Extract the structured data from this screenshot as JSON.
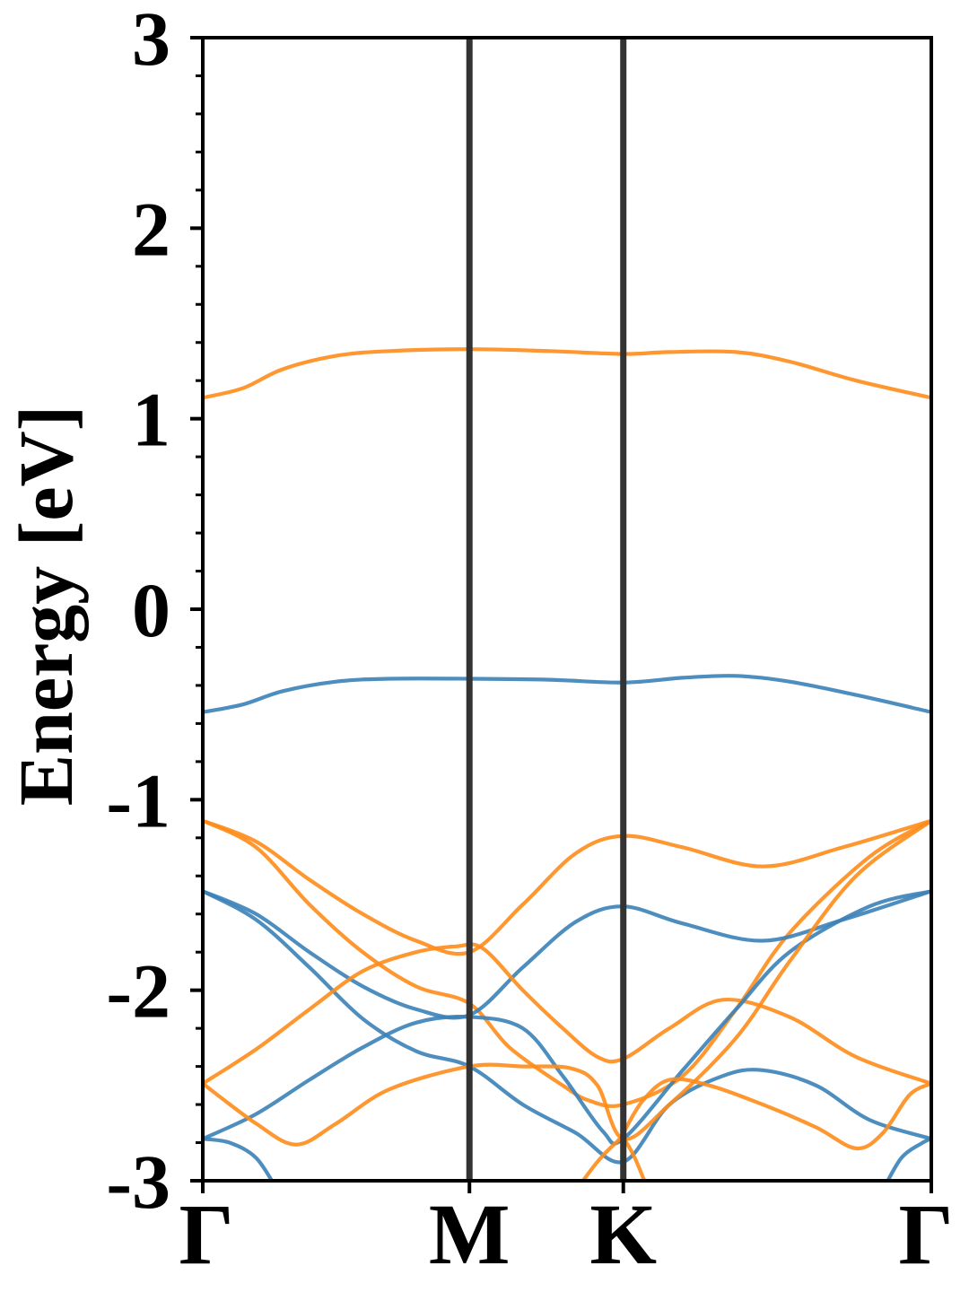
{
  "chart_data": {
    "type": "line",
    "title": "",
    "xlabel": "",
    "ylabel": "Energy [eV]",
    "ylim": [
      -3,
      3
    ],
    "xlim": [
      0,
      2.732
    ],
    "grid": false,
    "legend": "none",
    "y_ticks": [
      {
        "value": 3,
        "label": "3"
      },
      {
        "value": 2,
        "label": "2"
      },
      {
        "value": 1,
        "label": "1"
      },
      {
        "value": 0,
        "label": "0"
      },
      {
        "value": -1,
        "label": "-1"
      },
      {
        "value": -2,
        "label": "-2"
      },
      {
        "value": -3,
        "label": "-3"
      }
    ],
    "y_minor_step": 0.2,
    "x_ticks": [
      {
        "value": 0,
        "label": "Γ"
      },
      {
        "value": 1.0,
        "label": "M"
      },
      {
        "value": 1.577,
        "label": "K"
      },
      {
        "value": 2.732,
        "label": "Γ"
      }
    ],
    "vlines": [
      1.0,
      1.577
    ],
    "colors": {
      "blue": "#3b82b8",
      "orange": "#ff8c1a",
      "vline": "#333333"
    },
    "series": [
      {
        "color": "orange",
        "points": [
          [
            0,
            1.11
          ],
          [
            0.15,
            1.16
          ],
          [
            0.3,
            1.26
          ],
          [
            0.5,
            1.33
          ],
          [
            0.7,
            1.355
          ],
          [
            1.0,
            1.365
          ],
          [
            1.3,
            1.355
          ],
          [
            1.577,
            1.34
          ],
          [
            1.75,
            1.35
          ],
          [
            2.0,
            1.35
          ],
          [
            2.2,
            1.3
          ],
          [
            2.45,
            1.2
          ],
          [
            2.732,
            1.11
          ]
        ]
      },
      {
        "color": "blue",
        "points": [
          [
            0,
            -0.54
          ],
          [
            0.15,
            -0.5
          ],
          [
            0.3,
            -0.43
          ],
          [
            0.5,
            -0.38
          ],
          [
            0.7,
            -0.365
          ],
          [
            1.0,
            -0.365
          ],
          [
            1.3,
            -0.37
          ],
          [
            1.577,
            -0.385
          ],
          [
            1.8,
            -0.36
          ],
          [
            2.0,
            -0.35
          ],
          [
            2.2,
            -0.38
          ],
          [
            2.45,
            -0.45
          ],
          [
            2.732,
            -0.54
          ]
        ]
      },
      {
        "color": "orange",
        "points": [
          [
            0,
            -1.11
          ],
          [
            0.2,
            -1.22
          ],
          [
            0.4,
            -1.42
          ],
          [
            0.6,
            -1.6
          ],
          [
            0.8,
            -1.74
          ],
          [
            1.0,
            -1.8
          ],
          [
            1.2,
            -1.55
          ],
          [
            1.4,
            -1.28
          ],
          [
            1.577,
            -1.19
          ],
          [
            1.8,
            -1.25
          ],
          [
            2.1,
            -1.35
          ],
          [
            2.4,
            -1.25
          ],
          [
            2.732,
            -1.11
          ]
        ]
      },
      {
        "color": "orange",
        "points": [
          [
            0,
            -1.11
          ],
          [
            0.2,
            -1.25
          ],
          [
            0.4,
            -1.55
          ],
          [
            0.6,
            -1.8
          ],
          [
            0.8,
            -1.98
          ],
          [
            1.0,
            -2.07
          ],
          [
            1.15,
            -2.3
          ],
          [
            1.35,
            -2.5
          ],
          [
            1.45,
            -2.58
          ],
          [
            1.577,
            -2.6
          ],
          [
            1.8,
            -2.45
          ],
          [
            2.0,
            -2.1
          ],
          [
            2.2,
            -1.7
          ],
          [
            2.5,
            -1.3
          ],
          [
            2.732,
            -1.11
          ]
        ]
      },
      {
        "color": "blue",
        "points": [
          [
            0,
            -1.48
          ],
          [
            0.2,
            -1.6
          ],
          [
            0.4,
            -1.8
          ],
          [
            0.6,
            -1.98
          ],
          [
            0.8,
            -2.1
          ],
          [
            1.0,
            -2.13
          ],
          [
            1.2,
            -1.88
          ],
          [
            1.4,
            -1.64
          ],
          [
            1.577,
            -1.56
          ],
          [
            1.8,
            -1.65
          ],
          [
            2.1,
            -1.74
          ],
          [
            2.4,
            -1.63
          ],
          [
            2.732,
            -1.48
          ]
        ]
      },
      {
        "color": "blue",
        "points": [
          [
            0,
            -1.48
          ],
          [
            0.2,
            -1.63
          ],
          [
            0.4,
            -1.88
          ],
          [
            0.6,
            -2.15
          ],
          [
            0.8,
            -2.32
          ],
          [
            1.0,
            -2.4
          ],
          [
            1.2,
            -2.6
          ],
          [
            1.4,
            -2.75
          ],
          [
            1.577,
            -2.9
          ],
          [
            1.75,
            -2.6
          ],
          [
            1.95,
            -2.45
          ],
          [
            2.1,
            -2.42
          ],
          [
            2.3,
            -2.5
          ],
          [
            2.5,
            -2.68
          ],
          [
            2.732,
            -2.78
          ]
        ]
      },
      {
        "color": "orange",
        "points": [
          [
            0,
            -2.49
          ],
          [
            0.2,
            -2.31
          ],
          [
            0.4,
            -2.1
          ],
          [
            0.6,
            -1.9
          ],
          [
            0.8,
            -1.8
          ],
          [
            0.95,
            -1.77
          ],
          [
            1.05,
            -1.78
          ],
          [
            1.2,
            -2.0
          ],
          [
            1.35,
            -2.2
          ],
          [
            1.48,
            -2.35
          ],
          [
            1.577,
            -2.36
          ],
          [
            1.75,
            -2.2
          ],
          [
            1.95,
            -2.05
          ],
          [
            2.2,
            -2.14
          ],
          [
            2.45,
            -2.35
          ],
          [
            2.732,
            -2.49
          ]
        ]
      },
      {
        "color": "blue",
        "points": [
          [
            0,
            -2.78
          ],
          [
            0.2,
            -2.65
          ],
          [
            0.4,
            -2.47
          ],
          [
            0.6,
            -2.3
          ],
          [
            0.8,
            -2.17
          ],
          [
            1.0,
            -2.14
          ],
          [
            1.2,
            -2.2
          ],
          [
            1.35,
            -2.45
          ],
          [
            1.5,
            -2.74
          ],
          [
            1.577,
            -2.78
          ],
          [
            1.8,
            -2.42
          ],
          [
            2.0,
            -2.1
          ],
          [
            2.2,
            -1.8
          ],
          [
            2.5,
            -1.56
          ],
          [
            2.732,
            -1.48
          ]
        ]
      },
      {
        "color": "orange",
        "points": [
          [
            0,
            -2.49
          ],
          [
            0.2,
            -2.7
          ],
          [
            0.35,
            -2.81
          ],
          [
            0.5,
            -2.7
          ],
          [
            0.7,
            -2.52
          ],
          [
            1.0,
            -2.4
          ],
          [
            1.2,
            -2.4
          ],
          [
            1.38,
            -2.41
          ],
          [
            1.48,
            -2.5
          ],
          [
            1.577,
            -2.78
          ],
          [
            1.75,
            -2.6
          ],
          [
            2.0,
            -2.25
          ],
          [
            2.2,
            -1.85
          ],
          [
            2.45,
            -1.4
          ],
          [
            2.732,
            -1.11
          ]
        ]
      },
      {
        "color": "orange",
        "points": [
          [
            1.577,
            -2.75
          ],
          [
            1.65,
            -2.58
          ],
          [
            1.75,
            -2.47
          ],
          [
            1.9,
            -2.5
          ],
          [
            2.1,
            -2.6
          ],
          [
            2.3,
            -2.72
          ],
          [
            2.45,
            -2.83
          ],
          [
            2.55,
            -2.75
          ],
          [
            2.65,
            -2.55
          ],
          [
            2.732,
            -2.49
          ]
        ]
      },
      {
        "color": "blue",
        "points": [
          [
            0,
            -2.78
          ],
          [
            0.1,
            -2.8
          ],
          [
            0.2,
            -2.88
          ],
          [
            0.28,
            -3.05
          ]
        ]
      },
      {
        "color": "orange",
        "points": [
          [
            1.4,
            -3.05
          ],
          [
            1.48,
            -2.9
          ],
          [
            1.55,
            -2.8
          ],
          [
            1.577,
            -2.78
          ],
          [
            1.62,
            -2.88
          ],
          [
            1.67,
            -3.05
          ]
        ]
      },
      {
        "color": "blue",
        "points": [
          [
            2.55,
            -3.05
          ],
          [
            2.62,
            -2.88
          ],
          [
            2.7,
            -2.8
          ],
          [
            2.732,
            -2.78
          ]
        ]
      }
    ]
  }
}
